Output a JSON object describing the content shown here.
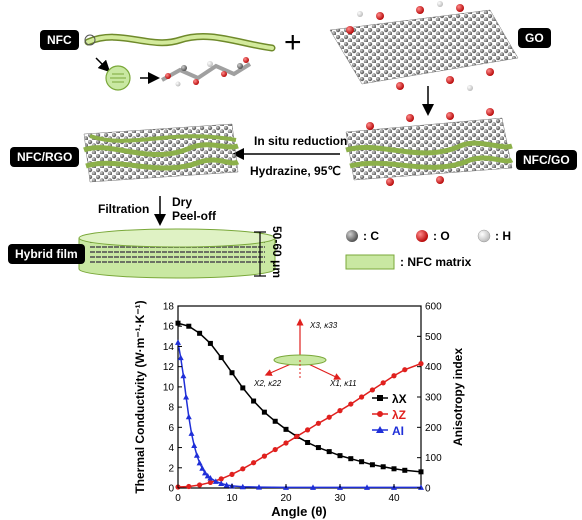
{
  "labels": {
    "nfc": "NFC",
    "go": "GO",
    "nfc_rgo": "NFC/RGO",
    "nfc_go": "NFC/GO",
    "hybrid_film": "Hybrid film",
    "in_situ": "In situ reduction",
    "hydrazine": "Hydrazine, 95℃",
    "filtration": "Filtration",
    "dry": "Dry",
    "peel_off": "Peel-off",
    "thickness": "50-60 μm",
    "plus": "+"
  },
  "atom_legend": [
    {
      "symbol": "C",
      "text": ": C",
      "color": "#6e6e6e"
    },
    {
      "symbol": "O",
      "text": ": O",
      "color": "#d8161b"
    },
    {
      "symbol": "H",
      "text": ": H",
      "color": "#ececec"
    }
  ],
  "matrix_legend": {
    "text": ": NFC matrix",
    "color": "#c9e8a2"
  },
  "inset": {
    "x3": "X3",
    "k33": "κ33",
    "x1": "X1",
    "k11": "κ11",
    "x2": "X2",
    "k22": "κ22"
  },
  "chart_data": {
    "type": "line",
    "xlabel": "Angle (θ)",
    "ylabel_left": "Thermal Conductivity (W·m⁻¹·K⁻¹)",
    "ylabel_right": "Anisotropy index",
    "xlim": [
      0,
      45
    ],
    "ylim_left": [
      0,
      18
    ],
    "ylim_right": [
      0,
      600
    ],
    "x_ticks": [
      0,
      10,
      20,
      30,
      40
    ],
    "y_ticks_left": [
      0,
      2,
      4,
      6,
      8,
      10,
      12,
      14,
      16,
      18
    ],
    "y_ticks_right": [
      0,
      100,
      200,
      300,
      400,
      500,
      600
    ],
    "legend_position": "right",
    "grid": false,
    "series": [
      {
        "name": "λX",
        "axis": "left",
        "color": "#000000",
        "marker": "square",
        "x": [
          0,
          2,
          4,
          6,
          8,
          10,
          12,
          14,
          16,
          18,
          20,
          22,
          24,
          26,
          28,
          30,
          32,
          34,
          36,
          38,
          40,
          42,
          45
        ],
        "y": [
          16.3,
          16.0,
          15.3,
          14.3,
          12.9,
          11.4,
          9.9,
          8.6,
          7.5,
          6.6,
          5.8,
          5.1,
          4.5,
          4.0,
          3.6,
          3.2,
          2.9,
          2.6,
          2.3,
          2.1,
          1.9,
          1.75,
          1.6
        ]
      },
      {
        "name": "λZ",
        "axis": "left",
        "color": "#e0201e",
        "marker": "circle",
        "x": [
          0,
          2,
          4,
          6,
          8,
          10,
          12,
          14,
          16,
          18,
          20,
          22,
          24,
          26,
          28,
          30,
          32,
          34,
          36,
          38,
          40,
          42,
          45
        ],
        "y": [
          0.1,
          0.15,
          0.3,
          0.55,
          0.9,
          1.35,
          1.9,
          2.5,
          3.15,
          3.8,
          4.45,
          5.1,
          5.75,
          6.4,
          7.0,
          7.65,
          8.3,
          9.0,
          9.7,
          10.4,
          11.1,
          11.7,
          12.3
        ]
      },
      {
        "name": "AI",
        "axis": "right",
        "color": "#1f2fd8",
        "marker": "triangle",
        "x": [
          0,
          0.5,
          1,
          1.5,
          2,
          2.5,
          3,
          3.5,
          4,
          4.5,
          5,
          5.5,
          6,
          7,
          8,
          9,
          10,
          12,
          15,
          20,
          25,
          30,
          35,
          40,
          45
        ],
        "y": [
          480,
          430,
          370,
          300,
          235,
          180,
          140,
          108,
          83,
          65,
          50,
          40,
          33,
          22,
          15,
          10,
          7,
          4,
          3,
          2,
          2,
          2,
          2,
          2,
          2
        ]
      }
    ]
  }
}
